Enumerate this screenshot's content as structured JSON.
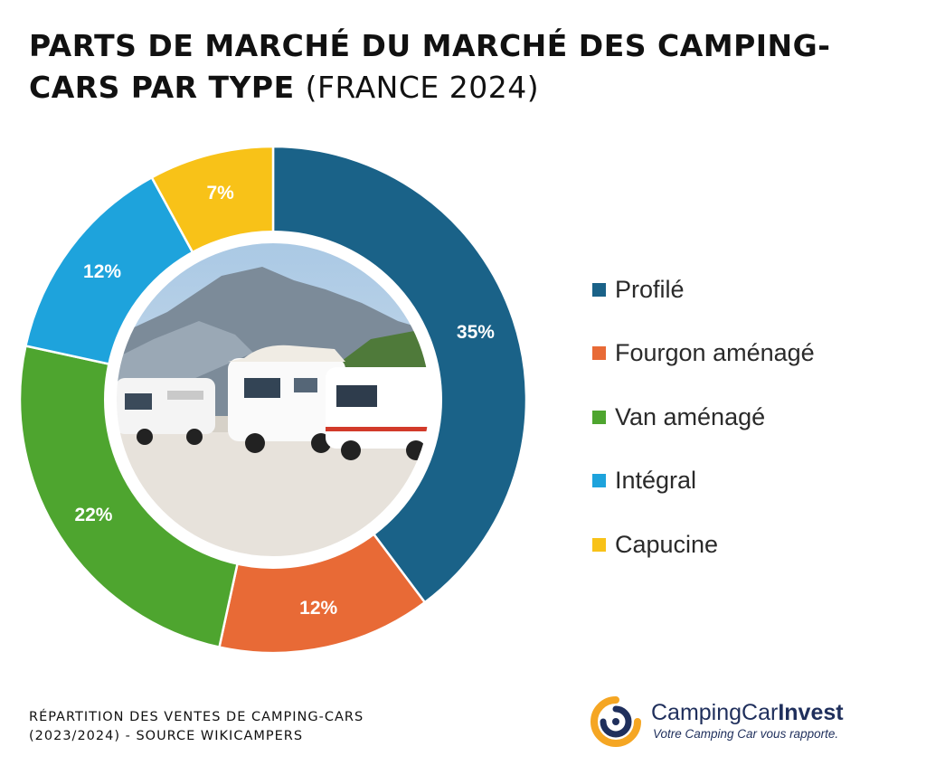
{
  "title": {
    "bold": "PARTS DE MARCHÉ DU MARCHÉ DES CAMPING-CARS PAR TYPE",
    "light": "(FRANCE 2024)"
  },
  "chart_data": {
    "type": "pie",
    "variant": "donut",
    "categories": [
      "Profilé",
      "Fourgon aménagé",
      "Van aménagé",
      "Intégral",
      "Capucine"
    ],
    "values": [
      35,
      12,
      22,
      12,
      7
    ],
    "labels": [
      "35%",
      "12%",
      "22%",
      "12%",
      "7%"
    ],
    "colors": [
      "#1a6288",
      "#e86a36",
      "#4ea52f",
      "#1ea3dc",
      "#f8c218"
    ],
    "center_image": "camper-vans-mountains",
    "legend_position": "right"
  },
  "footer": {
    "line1": "RÉPARTITION DES VENTES DE CAMPING-CARS",
    "line2": "(2023/2024) - SOURCE WIKICAMPERS"
  },
  "brand": {
    "name_regular": "CampingCar",
    "name_bold": "Invest",
    "tagline": "Votre Camping Car vous rapporte."
  }
}
